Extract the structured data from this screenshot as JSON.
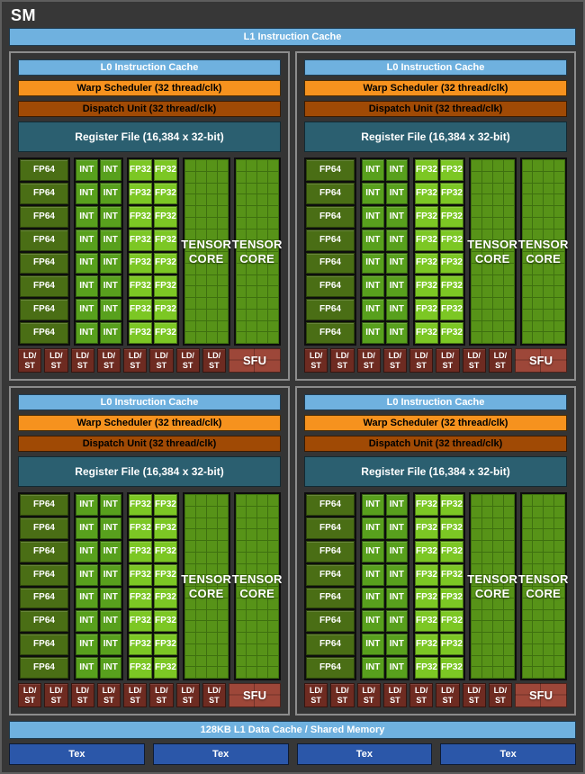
{
  "title": "SM",
  "l1_instruction_cache": "L1 Instruction Cache",
  "l1_data_cache": "128KB L1 Data Cache / Shared Memory",
  "tex_label": "Tex",
  "tex_count": 4,
  "quadrant_count": 4,
  "quadrant": {
    "l0_cache": "L0 Instruction Cache",
    "warp_scheduler": "Warp Scheduler (32 thread/clk)",
    "dispatch_unit": "Dispatch Unit (32 thread/clk)",
    "register_file": "Register File (16,384 x 32-bit)",
    "fp64_label": "FP64",
    "fp64_rows": 8,
    "int_label": "INT",
    "int_rows": 8,
    "int_cols": 2,
    "fp32_label": "FP32",
    "fp32_rows": 8,
    "fp32_cols": 2,
    "tensor_line1": "TENSOR",
    "tensor_line2": "CORE",
    "tensor_grid": {
      "rows": 16,
      "cols": 4
    },
    "tensor_core_count": 2,
    "ldst_line1": "LD/",
    "ldst_line2": "ST",
    "ldst_count": 8,
    "sfu_label": "SFU"
  },
  "colors": {
    "background": "#373737",
    "quadrant_border": "#8c8c8c",
    "cache_blue": "#6fb1df",
    "warp_orange": "#f6921e",
    "dispatch_rust": "#a04a05",
    "register_teal": "#2b5f70",
    "fp64_green": "#4a6e15",
    "int_green": "#58a01d",
    "fp32_green": "#7cc724",
    "tensor_green": "#579318",
    "ldst_maroon": "#6e2b21",
    "sfu_red": "#9d4739",
    "tex_blue": "#2b57a9"
  }
}
